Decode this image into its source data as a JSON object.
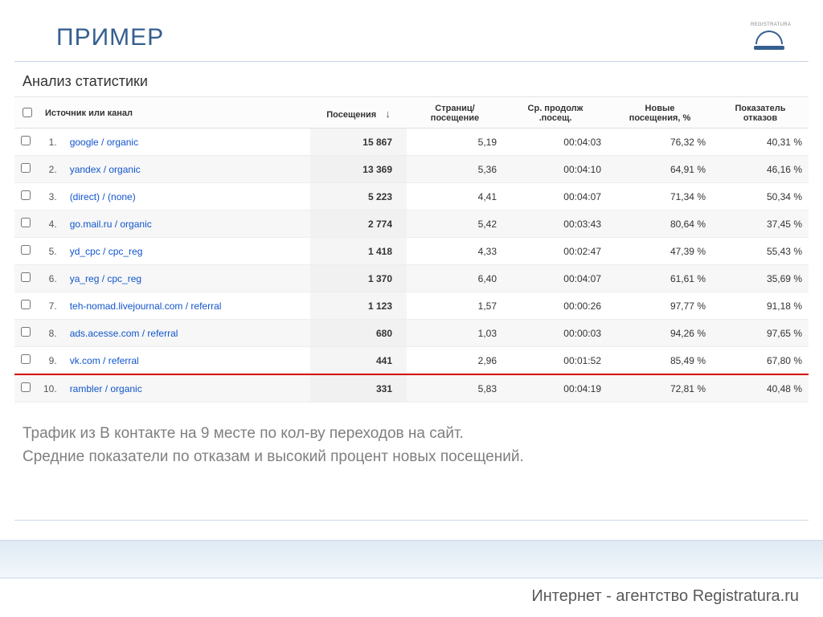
{
  "slide": {
    "title": "ПРИМЕР",
    "subtitle": "Анализ статистики",
    "logo_text": "REGISTRATURA"
  },
  "table": {
    "headers": {
      "source": "Источник или канал",
      "visits": "Посещения",
      "pages_per_visit": "Страниц/\nпосещение",
      "avg_duration": "Ср. продолж\n.посещ.",
      "new_visits": "Новые\nпосещения, %",
      "bounce_rate": "Показатель\nотказов"
    },
    "rows": [
      {
        "n": "1.",
        "source": "google / organic",
        "visits": "15 867",
        "pages": "5,19",
        "duration": "00:04:03",
        "new": "76,32 %",
        "bounce": "40,31 %",
        "highlight": false
      },
      {
        "n": "2.",
        "source": "yandex / organic",
        "visits": "13 369",
        "pages": "5,36",
        "duration": "00:04:10",
        "new": "64,91 %",
        "bounce": "46,16 %",
        "highlight": false
      },
      {
        "n": "3.",
        "source": "(direct) / (none)",
        "visits": "5 223",
        "pages": "4,41",
        "duration": "00:04:07",
        "new": "71,34 %",
        "bounce": "50,34 %",
        "highlight": false
      },
      {
        "n": "4.",
        "source": "go.mail.ru / organic",
        "visits": "2 774",
        "pages": "5,42",
        "duration": "00:03:43",
        "new": "80,64 %",
        "bounce": "37,45 %",
        "highlight": false
      },
      {
        "n": "5.",
        "source": "yd_cpc / cpc_reg",
        "visits": "1 418",
        "pages": "4,33",
        "duration": "00:02:47",
        "new": "47,39 %",
        "bounce": "55,43 %",
        "highlight": false
      },
      {
        "n": "6.",
        "source": "ya_reg / cpc_reg",
        "visits": "1 370",
        "pages": "6,40",
        "duration": "00:04:07",
        "new": "61,61 %",
        "bounce": "35,69 %",
        "highlight": false
      },
      {
        "n": "7.",
        "source": "teh-nomad.livejournal.com / referral",
        "visits": "1 123",
        "pages": "1,57",
        "duration": "00:00:26",
        "new": "97,77 %",
        "bounce": "91,18 %",
        "highlight": false
      },
      {
        "n": "8.",
        "source": "ads.acesse.com / referral",
        "visits": "680",
        "pages": "1,03",
        "duration": "00:00:03",
        "new": "94,26 %",
        "bounce": "97,65 %",
        "highlight": false
      },
      {
        "n": "9.",
        "source": "vk.com / referral",
        "visits": "441",
        "pages": "2,96",
        "duration": "00:01:52",
        "new": "85,49 %",
        "bounce": "67,80 %",
        "highlight": true
      },
      {
        "n": "10.",
        "source": "rambler / organic",
        "visits": "331",
        "pages": "5,83",
        "duration": "00:04:19",
        "new": "72,81 %",
        "bounce": "40,48 %",
        "highlight": false
      }
    ]
  },
  "commentary": {
    "line1": "Трафик из В контакте на 9 месте по кол-ву переходов на сайт.",
    "line2": "Средние показатели по отказам и высокий процент новых посещений."
  },
  "footer": {
    "text": "Интернет - агентство Registratura.ru"
  },
  "colors": {
    "title": "#365f91",
    "link": "#1155cc",
    "highlight_border": "#d40000",
    "footer_grad_top": "#dfeaf4",
    "footer_grad_bottom": "#f2f7fb"
  }
}
